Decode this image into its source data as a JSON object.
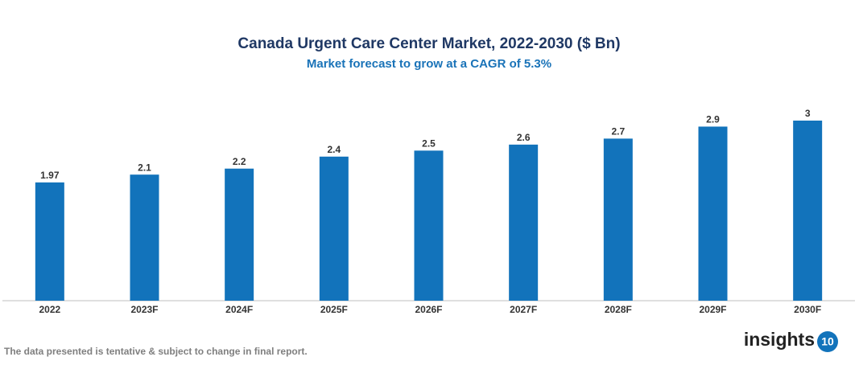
{
  "chart_data": {
    "type": "bar",
    "title": "Canada Urgent Care Center Market, 2022-2030 ($ Bn)",
    "subtitle": "Market forecast to grow at a CAGR of 5.3%",
    "categories": [
      "2022",
      "2023F",
      "2024F",
      "2025F",
      "2026F",
      "2027F",
      "2028F",
      "2029F",
      "2030F"
    ],
    "values": [
      1.97,
      2.1,
      2.2,
      2.4,
      2.5,
      2.6,
      2.7,
      2.9,
      3
    ],
    "color": "#1273bb"
  },
  "footer": {
    "note": "The data presented is tentative & subject to change in final report."
  },
  "logo": {
    "text": "insights",
    "badge": "10"
  }
}
